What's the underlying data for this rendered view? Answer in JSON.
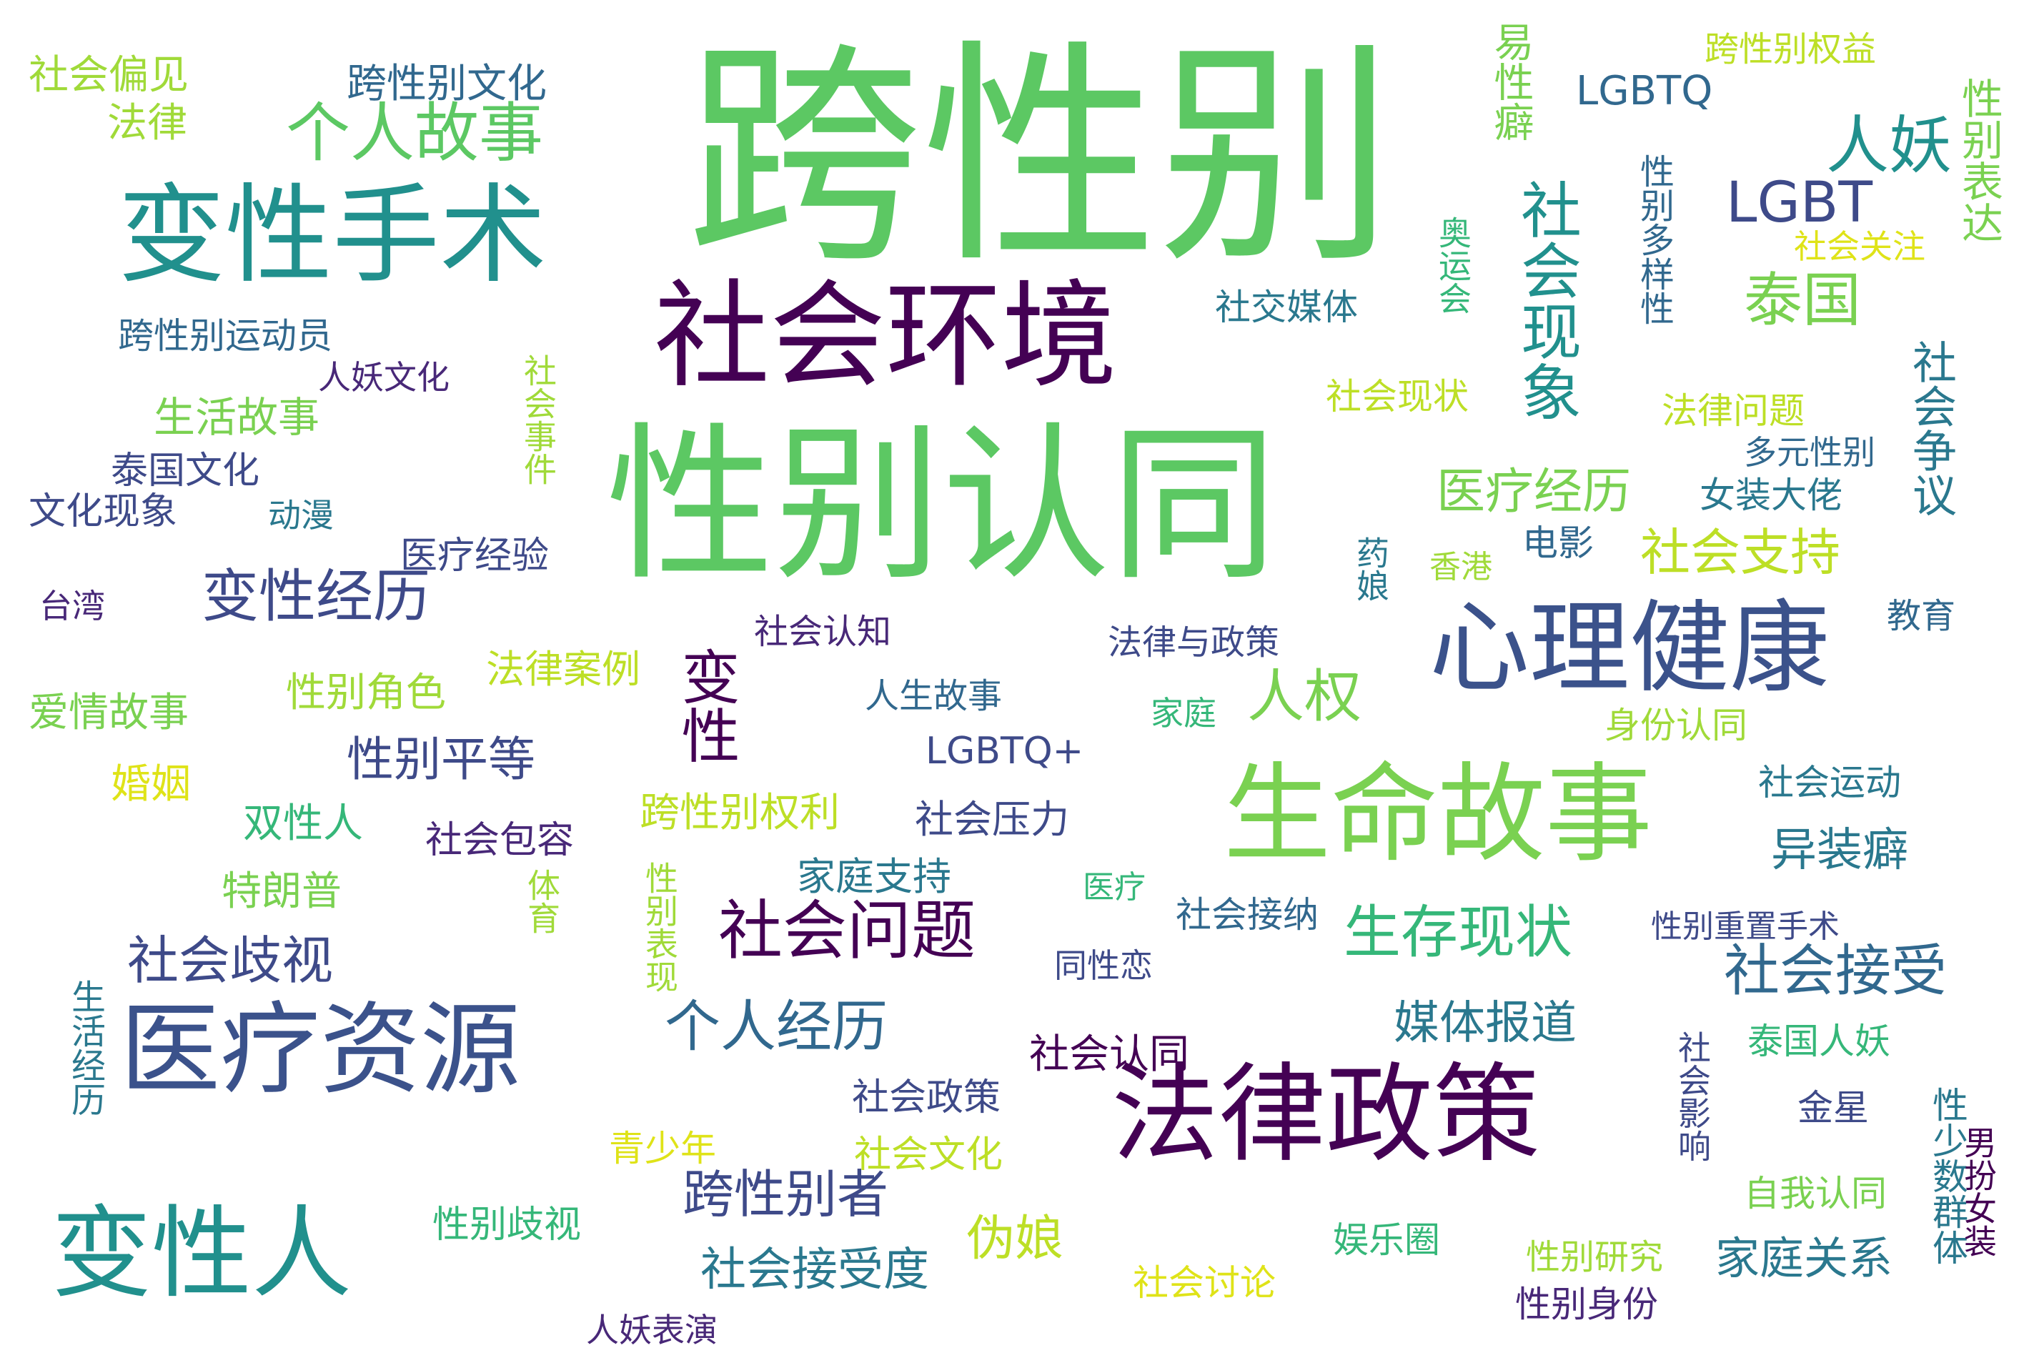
{
  "words": [
    {
      "text": "跨性别",
      "color": "#5cc863"
    },
    {
      "text": "性别认同",
      "color": "#5cc863"
    },
    {
      "text": "社会环境",
      "color": "#440154"
    },
    {
      "text": "变性手术",
      "color": "#21908d"
    },
    {
      "text": "法律政策",
      "color": "#440154"
    },
    {
      "text": "生命故事",
      "color": "#7ad151"
    },
    {
      "text": "心理健康",
      "color": "#3b528b"
    },
    {
      "text": "医疗资源",
      "color": "#3b528b"
    },
    {
      "text": "变性人",
      "color": "#21908d"
    },
    {
      "text": "社会现象",
      "color": "#21908d"
    },
    {
      "text": "个人故事",
      "color": "#5cc863"
    },
    {
      "text": "社会问题",
      "color": "#440154"
    },
    {
      "text": "人妖",
      "color": "#21908d"
    },
    {
      "text": "泰国",
      "color": "#7ad151"
    },
    {
      "text": "LGBT",
      "color": "#3e4a89"
    },
    {
      "text": "变性",
      "color": "#440154"
    },
    {
      "text": "人权",
      "color": "#7ad151"
    },
    {
      "text": "变性经历",
      "color": "#3e4a89"
    },
    {
      "text": "生存现状",
      "color": "#35b779"
    },
    {
      "text": "社会接受",
      "color": "#31688e"
    },
    {
      "text": "个人经历",
      "color": "#31688e"
    },
    {
      "text": "社会歧视",
      "color": "#3e4a89"
    },
    {
      "text": "跨性别者",
      "color": "#3e4a89"
    },
    {
      "text": "社会支持",
      "color": "#bddf26"
    },
    {
      "text": "医疗经历",
      "color": "#7ad151"
    },
    {
      "text": "异装癖",
      "color": "#2a788e"
    },
    {
      "text": "媒体报道",
      "color": "#2a788e"
    },
    {
      "text": "社会接受度",
      "color": "#2a788e"
    },
    {
      "text": "性别平等",
      "color": "#3e4a89"
    },
    {
      "text": "伪娘",
      "color": "#bddf26"
    },
    {
      "text": "家庭关系",
      "color": "#2a788e"
    },
    {
      "text": "社会争议",
      "color": "#2a788e"
    },
    {
      "text": "性别表达",
      "color": "#7ad151"
    },
    {
      "text": "LGBTQ",
      "color": "#31688e"
    },
    {
      "text": "易性癖",
      "color": "#7ad151"
    },
    {
      "text": "跨性别文化",
      "color": "#31688e"
    },
    {
      "text": "社会偏见",
      "color": "#a0da39"
    },
    {
      "text": "法律",
      "color": "#a0da39"
    },
    {
      "text": "跨性别运动员",
      "color": "#31688e"
    },
    {
      "text": "人妖文化",
      "color": "#482878"
    },
    {
      "text": "生活故事",
      "color": "#7ad151"
    },
    {
      "text": "泰国文化",
      "color": "#3e4a89"
    },
    {
      "text": "文化现象",
      "color": "#3e4a89"
    },
    {
      "text": "动漫",
      "color": "#2a788e"
    },
    {
      "text": "社会事件",
      "color": "#a0da39"
    },
    {
      "text": "医疗经验",
      "color": "#3e4a89"
    },
    {
      "text": "台湾",
      "color": "#482878"
    },
    {
      "text": "爱情故事",
      "color": "#7ad151"
    },
    {
      "text": "性别角色",
      "color": "#a0da39"
    },
    {
      "text": "法律案例",
      "color": "#bddf26"
    },
    {
      "text": "婚姻",
      "color": "#dfe318"
    },
    {
      "text": "双性人",
      "color": "#35b779"
    },
    {
      "text": "特朗普",
      "color": "#7ad151"
    },
    {
      "text": "社会包容",
      "color": "#482878"
    },
    {
      "text": "体育",
      "color": "#a0da39"
    },
    {
      "text": "生活经历",
      "color": "#2a788e"
    },
    {
      "text": "性别歧视",
      "color": "#35b779"
    },
    {
      "text": "人妖表演",
      "color": "#482878"
    },
    {
      "text": "性别表现",
      "color": "#a0da39"
    },
    {
      "text": "跨性别权利",
      "color": "#bddf26"
    },
    {
      "text": "社会压力",
      "color": "#3e4a89"
    },
    {
      "text": "家庭支持",
      "color": "#2a788e"
    },
    {
      "text": "社会认知",
      "color": "#482878"
    },
    {
      "text": "人生故事",
      "color": "#31688e"
    },
    {
      "text": "LGBTQ+",
      "color": "#3e4a89"
    },
    {
      "text": "社会认同",
      "color": "#440154"
    },
    {
      "text": "社会政策",
      "color": "#3e4a89"
    },
    {
      "text": "青少年",
      "color": "#dfe318"
    },
    {
      "text": "社会文化",
      "color": "#bddf26"
    },
    {
      "text": "社会讨论",
      "color": "#dfe318"
    },
    {
      "text": "娱乐圈",
      "color": "#35b779"
    },
    {
      "text": "性别研究",
      "color": "#a0da39"
    },
    {
      "text": "性别身份",
      "color": "#482878"
    },
    {
      "text": "社交媒体",
      "color": "#2a788e"
    },
    {
      "text": "社会现状",
      "color": "#bddf26"
    },
    {
      "text": "奥运会",
      "color": "#35b779"
    },
    {
      "text": "性别多样性",
      "color": "#31688e"
    },
    {
      "text": "社会关注",
      "color": "#dfe318"
    },
    {
      "text": "跨性别权益",
      "color": "#bddf26"
    },
    {
      "text": "法律问题",
      "color": "#bddf26"
    },
    {
      "text": "多元性别",
      "color": "#31688e"
    },
    {
      "text": "女装大佬",
      "color": "#2a788e"
    },
    {
      "text": "电影",
      "color": "#31688e"
    },
    {
      "text": "香港",
      "color": "#a0da39"
    },
    {
      "text": "药娘",
      "color": "#2a788e"
    },
    {
      "text": "法律与政策",
      "color": "#3e4a89"
    },
    {
      "text": "教育",
      "color": "#31688e"
    },
    {
      "text": "家庭",
      "color": "#35b779"
    },
    {
      "text": "身份认同",
      "color": "#a0da39"
    },
    {
      "text": "社会运动",
      "color": "#2a788e"
    },
    {
      "text": "医疗",
      "color": "#35b779"
    },
    {
      "text": "社会接纳",
      "color": "#31688e"
    },
    {
      "text": "同性恋",
      "color": "#3e4a89"
    },
    {
      "text": "性别重置手术",
      "color": "#3e4a89"
    },
    {
      "text": "社会影响",
      "color": "#3e4a89"
    },
    {
      "text": "泰国人妖",
      "color": "#35b779"
    },
    {
      "text": "金星",
      "color": "#3e4a89"
    },
    {
      "text": "自我认同",
      "color": "#7ad151"
    },
    {
      "text": "性少数群体",
      "color": "#2a788e"
    },
    {
      "text": "男扮女装",
      "color": "#440154"
    }
  ]
}
